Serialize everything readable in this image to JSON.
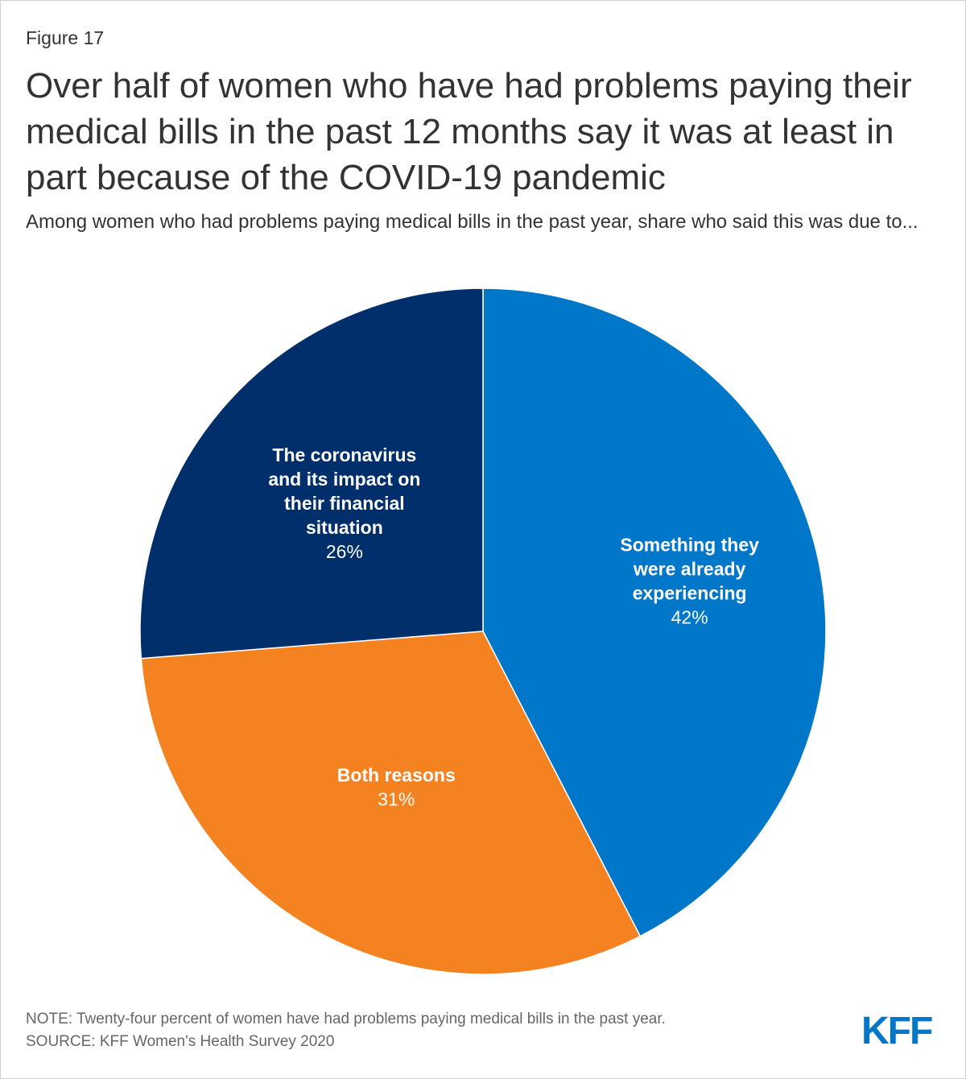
{
  "figure_label": "Figure 17",
  "title": "Over half of women who have had problems paying their medical bills in the past 12 months say it was at least in part because of the COVID-19 pandemic",
  "subtitle": "Among women who had problems paying medical bills in the past year, share who said this was due to...",
  "chart_data": {
    "type": "pie",
    "title": "Over half of women who have had problems paying their medical bills in the past 12 months say it was at least in part because of the COVID-19 pandemic",
    "start": "top, clockwise",
    "slices": [
      {
        "label_lines": [
          "Something they",
          "were already",
          "experiencing"
        ],
        "value": 42,
        "value_label": "42%",
        "color": "#0077c8"
      },
      {
        "label_lines": [
          "Both reasons"
        ],
        "value": 31,
        "value_label": "31%",
        "color": "#f58220"
      },
      {
        "label_lines": [
          "The coronavirus",
          "and its impact on",
          "their financial",
          "situation"
        ],
        "value": 26,
        "value_label": "26%",
        "color": "#002f6c"
      }
    ]
  },
  "note": "NOTE: Twenty-four percent of women have had problems paying medical bills in the past year.",
  "source": "SOURCE: KFF Women's Health Survey 2020",
  "logo_text": "KFF"
}
